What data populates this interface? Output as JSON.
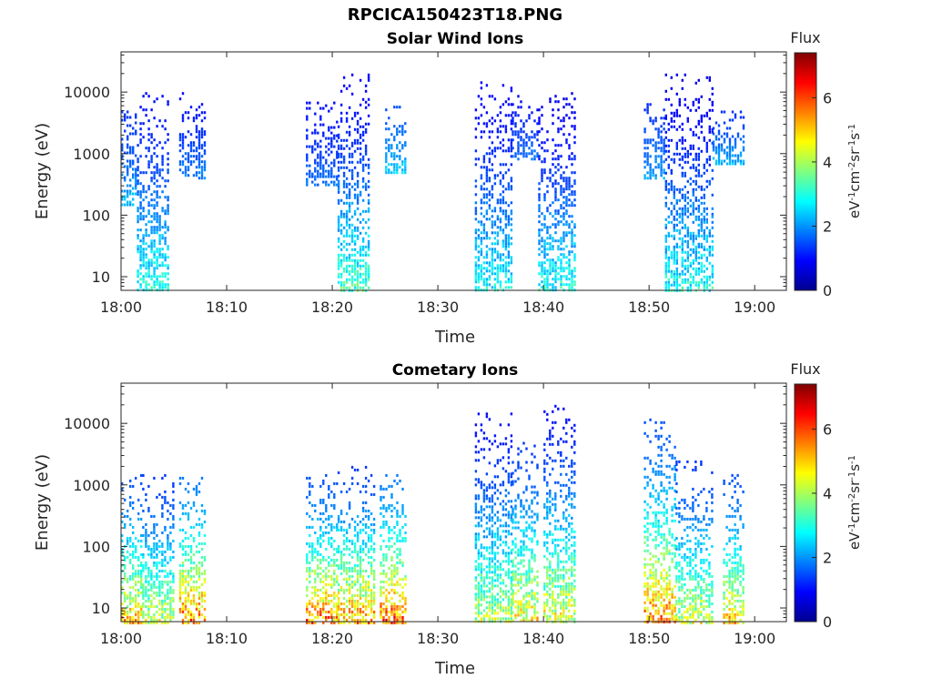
{
  "figure": {
    "title": "RPCICA150423T18.PNG"
  },
  "chart_data": [
    {
      "type": "heatmap",
      "title": "Solar Wind Ions",
      "xlabel": "Time",
      "ylabel": "Energy (eV)",
      "yscale": "log",
      "ylim": [
        6,
        45000
      ],
      "xlim": [
        "18:00",
        "19:03"
      ],
      "xticks": [
        "18:00",
        "18:10",
        "18:20",
        "18:30",
        "18:40",
        "18:50",
        "19:00"
      ],
      "yticks": [
        "10",
        "100",
        "1000",
        "10000"
      ],
      "grid": false,
      "colorbar": {
        "label": "Flux",
        "units": "eV-1cm-2sr-1s-1",
        "ticks": [
          "0",
          "2",
          "4",
          "6"
        ],
        "range": [
          0,
          7.4
        ],
        "colormap": "jet"
      },
      "bursts": [
        {
          "start": "18:00",
          "end": "18:01:30",
          "emin": 150,
          "emax": 5000,
          "fmin": 1.3,
          "fmax": 2.6
        },
        {
          "start": "18:01:30",
          "end": "18:04:30",
          "emin": 6,
          "emax": 10000,
          "fmin": 1.0,
          "fmax": 3.6
        },
        {
          "start": "18:05:30",
          "end": "18:08",
          "emin": 400,
          "emax": 10000,
          "fmin": 1.0,
          "fmax": 2.2
        },
        {
          "start": "18:17:30",
          "end": "18:20:30",
          "emin": 300,
          "emax": 7000,
          "fmin": 1.0,
          "fmax": 2.0
        },
        {
          "start": "18:20:30",
          "end": "18:23:30",
          "emin": 6,
          "emax": 20000,
          "fmin": 0.9,
          "fmax": 4.0
        },
        {
          "start": "18:25",
          "end": "18:27",
          "emin": 500,
          "emax": 6000,
          "fmin": 1.5,
          "fmax": 2.8
        },
        {
          "start": "18:33:30",
          "end": "18:37",
          "emin": 6,
          "emax": 15000,
          "fmin": 0.9,
          "fmax": 3.4
        },
        {
          "start": "18:37",
          "end": "18:39:30",
          "emin": 800,
          "emax": 9000,
          "fmin": 1.0,
          "fmax": 2.0
        },
        {
          "start": "18:39:30",
          "end": "18:43",
          "emin": 6,
          "emax": 10000,
          "fmin": 0.8,
          "fmax": 3.6
        },
        {
          "start": "18:49:30",
          "end": "18:51:30",
          "emin": 400,
          "emax": 9000,
          "fmin": 1.2,
          "fmax": 2.4
        },
        {
          "start": "18:51:30",
          "end": "18:56",
          "emin": 6,
          "emax": 20000,
          "fmin": 0.8,
          "fmax": 3.6
        },
        {
          "start": "18:56",
          "end": "18:59",
          "emin": 700,
          "emax": 5000,
          "fmin": 1.3,
          "fmax": 2.6
        }
      ]
    },
    {
      "type": "heatmap",
      "title": "Cometary Ions",
      "xlabel": "Time",
      "ylabel": "Energy (eV)",
      "yscale": "log",
      "ylim": [
        6,
        45000
      ],
      "xlim": [
        "18:00",
        "19:03"
      ],
      "xticks": [
        "18:00",
        "18:10",
        "18:20",
        "18:30",
        "18:40",
        "18:50",
        "19:00"
      ],
      "yticks": [
        "10",
        "100",
        "1000",
        "10000"
      ],
      "grid": false,
      "colorbar": {
        "label": "Flux",
        "units": "eV-1cm-2sr-1s-1",
        "ticks": [
          "0",
          "2",
          "4",
          "6"
        ],
        "range": [
          0,
          7.4
        ],
        "colormap": "jet"
      },
      "bursts": [
        {
          "start": "18:00",
          "end": "18:02",
          "emin": 6,
          "emax": 1500,
          "fmin": 1.5,
          "fmax": 6.0
        },
        {
          "start": "18:02",
          "end": "18:05",
          "emin": 6,
          "emax": 1500,
          "fmin": 1.3,
          "fmax": 5.2
        },
        {
          "start": "18:05:30",
          "end": "18:08",
          "emin": 6,
          "emax": 1500,
          "fmin": 1.8,
          "fmax": 6.8
        },
        {
          "start": "18:17:30",
          "end": "18:20:30",
          "emin": 6,
          "emax": 1500,
          "fmin": 1.5,
          "fmax": 7.0
        },
        {
          "start": "18:20:30",
          "end": "18:24",
          "emin": 6,
          "emax": 2500,
          "fmin": 1.3,
          "fmax": 6.6
        },
        {
          "start": "18:24:30",
          "end": "18:27",
          "emin": 6,
          "emax": 1500,
          "fmin": 1.8,
          "fmax": 7.0
        },
        {
          "start": "18:33:30",
          "end": "18:37",
          "emin": 6,
          "emax": 15000,
          "fmin": 1.0,
          "fmax": 5.0
        },
        {
          "start": "18:37",
          "end": "18:39:30",
          "emin": 6,
          "emax": 5000,
          "fmin": 1.3,
          "fmax": 5.8
        },
        {
          "start": "18:40",
          "end": "18:43",
          "emin": 6,
          "emax": 20000,
          "fmin": 1.0,
          "fmax": 5.6
        },
        {
          "start": "18:49:30",
          "end": "18:52:30",
          "emin": 6,
          "emax": 12000,
          "fmin": 1.5,
          "fmax": 6.6
        },
        {
          "start": "18:52:30",
          "end": "18:56",
          "emin": 6,
          "emax": 2500,
          "fmin": 1.3,
          "fmax": 5.2
        },
        {
          "start": "18:57",
          "end": "18:59",
          "emin": 6,
          "emax": 1500,
          "fmin": 1.5,
          "fmax": 6.0
        }
      ]
    }
  ]
}
